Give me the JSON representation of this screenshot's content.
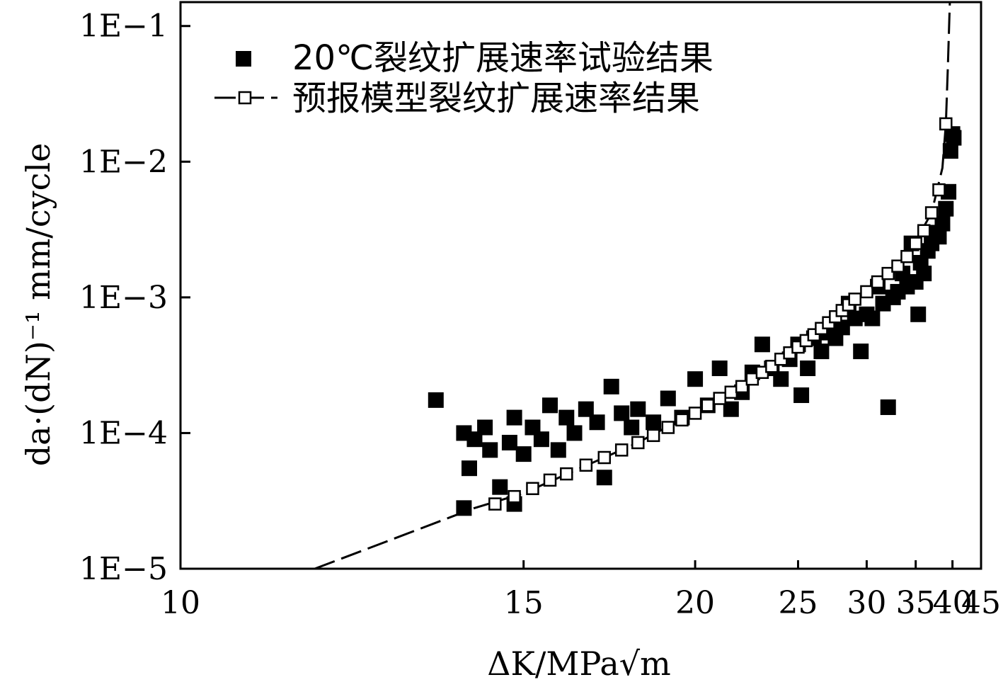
{
  "chart_data": {
    "type": "scatter",
    "xlabel": "ΔK/MPa√m",
    "ylabel": "da·(dN)⁻¹ mm/cycle",
    "xlim": [
      10,
      45
    ],
    "ylim": [
      1e-05,
      0.15
    ],
    "x_scale": "reciprocal",
    "y_scale": "log",
    "grid": false,
    "legend_position": "top-left",
    "x_ticks": [
      {
        "value": 10,
        "label": "10"
      },
      {
        "value": 15,
        "label": "15"
      },
      {
        "value": 20,
        "label": "20"
      },
      {
        "value": 25,
        "label": "25"
      },
      {
        "value": 30,
        "label": "30"
      },
      {
        "value": 35,
        "label": "35"
      },
      {
        "value": 40,
        "label": "40"
      },
      {
        "value": 45,
        "label": "45"
      }
    ],
    "y_ticks": [
      {
        "value": 0.1,
        "label": "1E−1"
      },
      {
        "value": 0.01,
        "label": "1E−2"
      },
      {
        "value": 0.001,
        "label": "1E−3"
      },
      {
        "value": 0.0001,
        "label": "1E−4"
      },
      {
        "value": 1e-05,
        "label": "1E−5"
      }
    ],
    "series": [
      {
        "name": "20℃裂纹扩展速率试验结果",
        "marker": "filled-square",
        "color": "#000000",
        "points": [
          [
            13.3,
            0.000175
          ],
          [
            13.8,
            2.8e-05
          ],
          [
            13.8,
            0.0001
          ],
          [
            13.9,
            5.5e-05
          ],
          [
            14.0,
            9e-05
          ],
          [
            14.2,
            0.00011
          ],
          [
            14.3,
            7.5e-05
          ],
          [
            14.5,
            4e-05
          ],
          [
            14.7,
            8.5e-05
          ],
          [
            14.8,
            3e-05
          ],
          [
            14.8,
            0.00013
          ],
          [
            15.0,
            7e-05
          ],
          [
            15.2,
            0.00011
          ],
          [
            15.4,
            9e-05
          ],
          [
            15.6,
            0.00016
          ],
          [
            15.8,
            7.5e-05
          ],
          [
            16.0,
            0.00013
          ],
          [
            16.2,
            0.0001
          ],
          [
            16.5,
            0.00015
          ],
          [
            16.8,
            0.00012
          ],
          [
            17.0,
            4.7e-05
          ],
          [
            17.2,
            0.00022
          ],
          [
            17.5,
            0.00014
          ],
          [
            17.8,
            0.00011
          ],
          [
            18.0,
            0.00015
          ],
          [
            18.5,
            0.00012
          ],
          [
            19.0,
            0.00018
          ],
          [
            19.5,
            0.00013
          ],
          [
            20.0,
            0.00025
          ],
          [
            20.5,
            0.00016
          ],
          [
            21.0,
            0.0003
          ],
          [
            21.5,
            0.00015
          ],
          [
            22.0,
            0.0002
          ],
          [
            22.5,
            0.00028
          ],
          [
            23.0,
            0.00045
          ],
          [
            23.5,
            0.0003
          ],
          [
            24.0,
            0.00025
          ],
          [
            24.5,
            0.00035
          ],
          [
            25.0,
            0.00045
          ],
          [
            25.2,
            0.00019
          ],
          [
            25.6,
            0.0003
          ],
          [
            26.0,
            0.0005
          ],
          [
            26.5,
            0.0004
          ],
          [
            27.0,
            0.00055
          ],
          [
            27.5,
            0.0005
          ],
          [
            28.0,
            0.0006
          ],
          [
            28.5,
            0.0009
          ],
          [
            29.0,
            0.0007
          ],
          [
            29.5,
            0.0004
          ],
          [
            30.0,
            0.00075
          ],
          [
            30.5,
            0.0007
          ],
          [
            31.0,
            0.0012
          ],
          [
            31.5,
            0.0009
          ],
          [
            32.0,
            0.000155
          ],
          [
            32.5,
            0.001
          ],
          [
            33.0,
            0.0011
          ],
          [
            33.5,
            0.0015
          ],
          [
            34.0,
            0.0012
          ],
          [
            34.5,
            0.0025
          ],
          [
            35.0,
            0.0013
          ],
          [
            35.3,
            0.00075
          ],
          [
            35.6,
            0.0018
          ],
          [
            36.0,
            0.0015
          ],
          [
            36.5,
            0.0022
          ],
          [
            37.0,
            0.0025
          ],
          [
            37.5,
            0.003
          ],
          [
            38.0,
            0.0028
          ],
          [
            38.5,
            0.0035
          ],
          [
            39.0,
            0.0045
          ],
          [
            39.4,
            0.006
          ],
          [
            39.7,
            0.012
          ],
          [
            40.0,
            0.016
          ],
          [
            40.2,
            0.015
          ]
        ]
      },
      {
        "name": "预报模型裂纹扩展速率结果",
        "marker": "open-square-dashed-line",
        "color": "#000000",
        "points": [
          [
            14.4,
            3e-05
          ],
          [
            14.8,
            3.4e-05
          ],
          [
            15.2,
            3.9e-05
          ],
          [
            15.6,
            4.5e-05
          ],
          [
            16.0,
            5e-05
          ],
          [
            16.5,
            5.8e-05
          ],
          [
            17.0,
            6.6e-05
          ],
          [
            17.5,
            7.5e-05
          ],
          [
            18.0,
            8.5e-05
          ],
          [
            18.5,
            9.6e-05
          ],
          [
            19.0,
            0.00011
          ],
          [
            19.5,
            0.000125
          ],
          [
            20.0,
            0.00014
          ],
          [
            20.5,
            0.00016
          ],
          [
            21.0,
            0.00018
          ],
          [
            21.5,
            0.0002
          ],
          [
            22.0,
            0.00022
          ],
          [
            22.5,
            0.00025
          ],
          [
            23.0,
            0.00028
          ],
          [
            23.5,
            0.00031
          ],
          [
            24.0,
            0.00035
          ],
          [
            24.5,
            0.00039
          ],
          [
            25.0,
            0.00043
          ],
          [
            25.5,
            0.00048
          ],
          [
            26.0,
            0.00053
          ],
          [
            26.5,
            0.00059
          ],
          [
            27.0,
            0.00065
          ],
          [
            27.5,
            0.00072
          ],
          [
            28.0,
            0.0008
          ],
          [
            28.5,
            0.00088
          ],
          [
            29.0,
            0.00097
          ],
          [
            30.0,
            0.0011
          ],
          [
            31.0,
            0.0013
          ],
          [
            32.0,
            0.0015
          ],
          [
            33.0,
            0.0017
          ],
          [
            34.0,
            0.002
          ],
          [
            35.0,
            0.0025
          ],
          [
            36.0,
            0.0031
          ],
          [
            37.0,
            0.0042
          ],
          [
            38.0,
            0.0062
          ],
          [
            39.0,
            0.019
          ]
        ],
        "line": [
          [
            11.5,
            1e-05
          ],
          [
            14.0,
            2.8e-05
          ],
          [
            15.0,
            3.6e-05
          ],
          [
            18.0,
            8.5e-05
          ],
          [
            22.0,
            0.00022
          ],
          [
            26.0,
            0.00053
          ],
          [
            30.0,
            0.0011
          ],
          [
            34.0,
            0.002
          ],
          [
            37.0,
            0.0042
          ],
          [
            38.5,
            0.009
          ],
          [
            39.0,
            0.019
          ],
          [
            39.3,
            0.05
          ],
          [
            39.6,
            0.15
          ]
        ]
      }
    ]
  }
}
